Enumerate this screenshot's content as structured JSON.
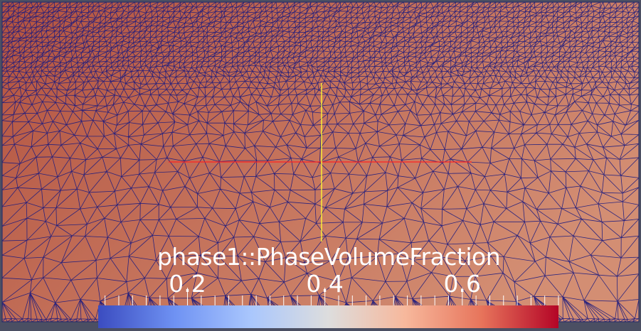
{
  "app": {
    "background_color": "#4b4f63",
    "domain_frame_color": "#2b2f6a",
    "mesh_edge_color": "#1a1a80"
  },
  "field": {
    "name": "phase1::PhaseVolumeFraction",
    "gradient_left": "#b3523f",
    "gradient_right": "#d38e73"
  },
  "scalar_bar": {
    "title": "phase1::PhaseVolumeFraction",
    "range": [
      0.07,
      0.74
    ],
    "labels": [
      "0.2",
      "0.4",
      "0.6"
    ],
    "label_values": [
      0.2,
      0.4,
      0.6
    ],
    "colormap": [
      "#3b4cc0",
      "#6f92f3",
      "#aac7fd",
      "#dddddd",
      "#f7b89c",
      "#e7745b",
      "#b40426"
    ]
  },
  "axes_widget": {
    "horizontal_color": "#ff2222",
    "vertical_color": "#ffff33"
  }
}
